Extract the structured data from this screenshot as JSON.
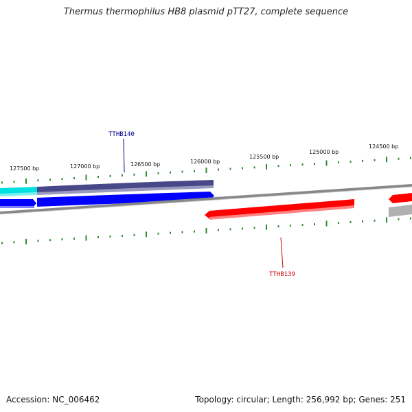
{
  "title": "Thermus thermophilus HB8 plasmid pTT27, complete sequence",
  "footer": {
    "accession": "Accession: NC_006462",
    "summary": "Topology: circular; Length: 256,992 bp; Genes: 251"
  },
  "scale_labels": [
    "127500 bp",
    "127000 bp",
    "126500 bp",
    "126000 bp",
    "125500 bp",
    "125000 bp",
    "124500 bp"
  ],
  "gene_labels": [
    {
      "name": "TTHB140",
      "color": "#00008b"
    },
    {
      "name": "TTHB139",
      "color": "#cc0000"
    }
  ],
  "colors": {
    "backbone": "#888888",
    "forward_gene": "#0000ff",
    "reverse_gene": "#ff0000",
    "cds_band": "#484888",
    "cyan_band": "#00e0e0",
    "tick": "#2e8b2e"
  }
}
